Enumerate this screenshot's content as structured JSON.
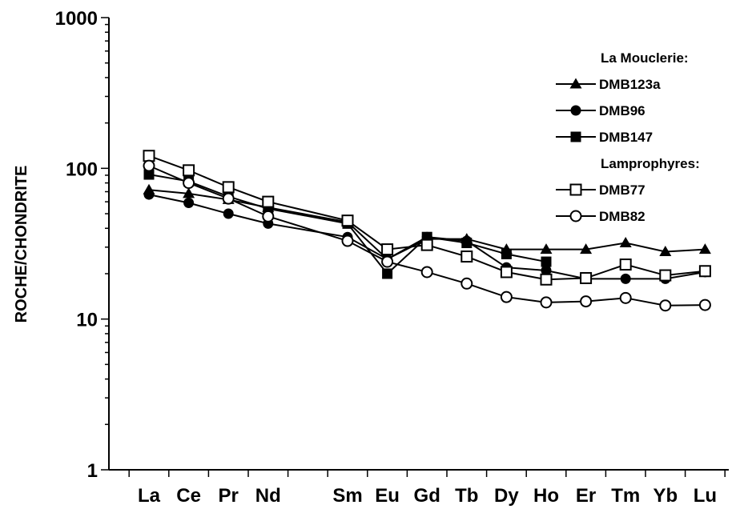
{
  "chart_data": {
    "type": "line",
    "ylabel": "ROCHE/CHONDRITE",
    "xlabel": "",
    "yscale": "log",
    "ylim": [
      1,
      1000
    ],
    "yticks": [
      "1",
      "10",
      "100",
      "1000"
    ],
    "categories": [
      "La",
      "Ce",
      "Pr",
      "Nd",
      "Sm",
      "Eu",
      "Gd",
      "Tb",
      "Dy",
      "Ho",
      "Er",
      "Tm",
      "Yb",
      "Lu"
    ],
    "category_positions": [
      1,
      2,
      3,
      4,
      6,
      7,
      8,
      9,
      10,
      11,
      12,
      13,
      14,
      15
    ],
    "legend_position": "top-right",
    "legend_headings": [
      "La Mouclerie:",
      "Lamprophyres:"
    ],
    "series": [
      {
        "name": "DMB123a",
        "marker": "filled-triangle",
        "group": "La Mouclerie:",
        "values": [
          72,
          68,
          62,
          55,
          44,
          25,
          34,
          34,
          29,
          29,
          29,
          32,
          28,
          29
        ]
      },
      {
        "name": "DMB96",
        "marker": "filled-circle",
        "group": "La Mouclerie:",
        "values": [
          67,
          59,
          50,
          43,
          35,
          25,
          35,
          33,
          22,
          21,
          18.5,
          18.5,
          18.5,
          20.5
        ]
      },
      {
        "name": "DMB147",
        "marker": "filled-square",
        "group": "La Mouclerie:",
        "values": [
          91,
          82,
          65,
          54,
          43,
          20,
          35,
          32,
          27,
          24,
          null,
          null,
          null,
          null
        ]
      },
      {
        "name": "DMB77",
        "marker": "open-square",
        "group": "Lamprophyres:",
        "values": [
          121,
          97,
          75,
          60,
          45,
          29,
          31,
          26,
          20.5,
          18.3,
          18.7,
          23,
          19.5,
          20.8
        ]
      },
      {
        "name": "DMB82",
        "marker": "open-circle",
        "group": "Lamprophyres:",
        "values": [
          104,
          80,
          63,
          48,
          33,
          24,
          20.5,
          17.2,
          14,
          12.9,
          13.1,
          13.8,
          12.3,
          12.4
        ]
      }
    ]
  }
}
